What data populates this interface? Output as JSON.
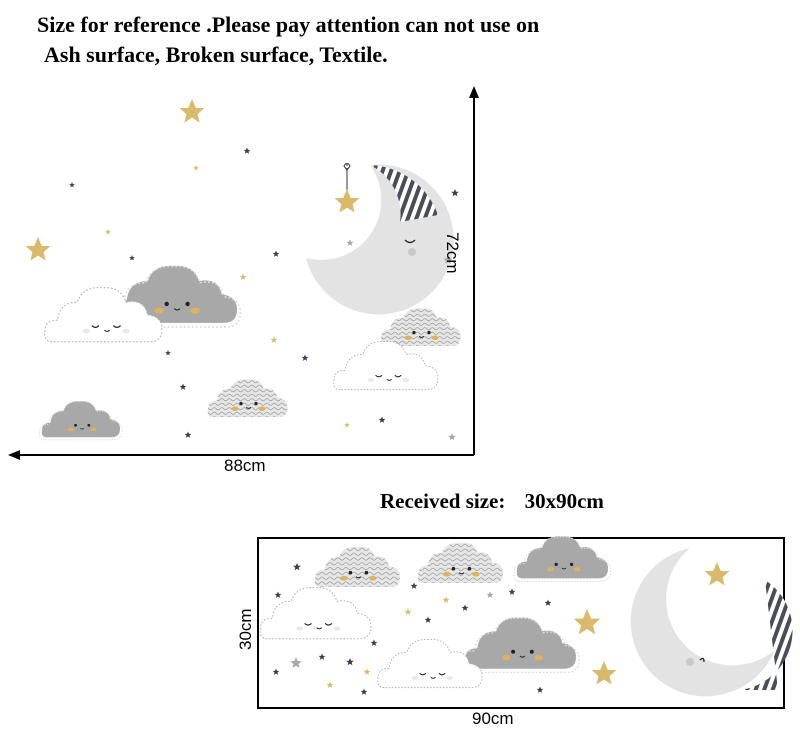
{
  "header": {
    "line1": "Size for reference .Please pay attention can not use on",
    "line2": "Ash surface, Broken surface, Textile."
  },
  "preview_large": {
    "height_label": "72cm",
    "width_label": "88cm"
  },
  "received": {
    "label": "Received size:",
    "size": "30x90cm"
  },
  "preview_small": {
    "height_label": "30cm",
    "width_label": "90cm"
  },
  "colors": {
    "gold_star": "#d9b96c",
    "gray_cloud": "#a8a8a8",
    "dark_star": "#3c3f46",
    "moon": "#e3e3e3",
    "stripe": "#4a4d57"
  }
}
